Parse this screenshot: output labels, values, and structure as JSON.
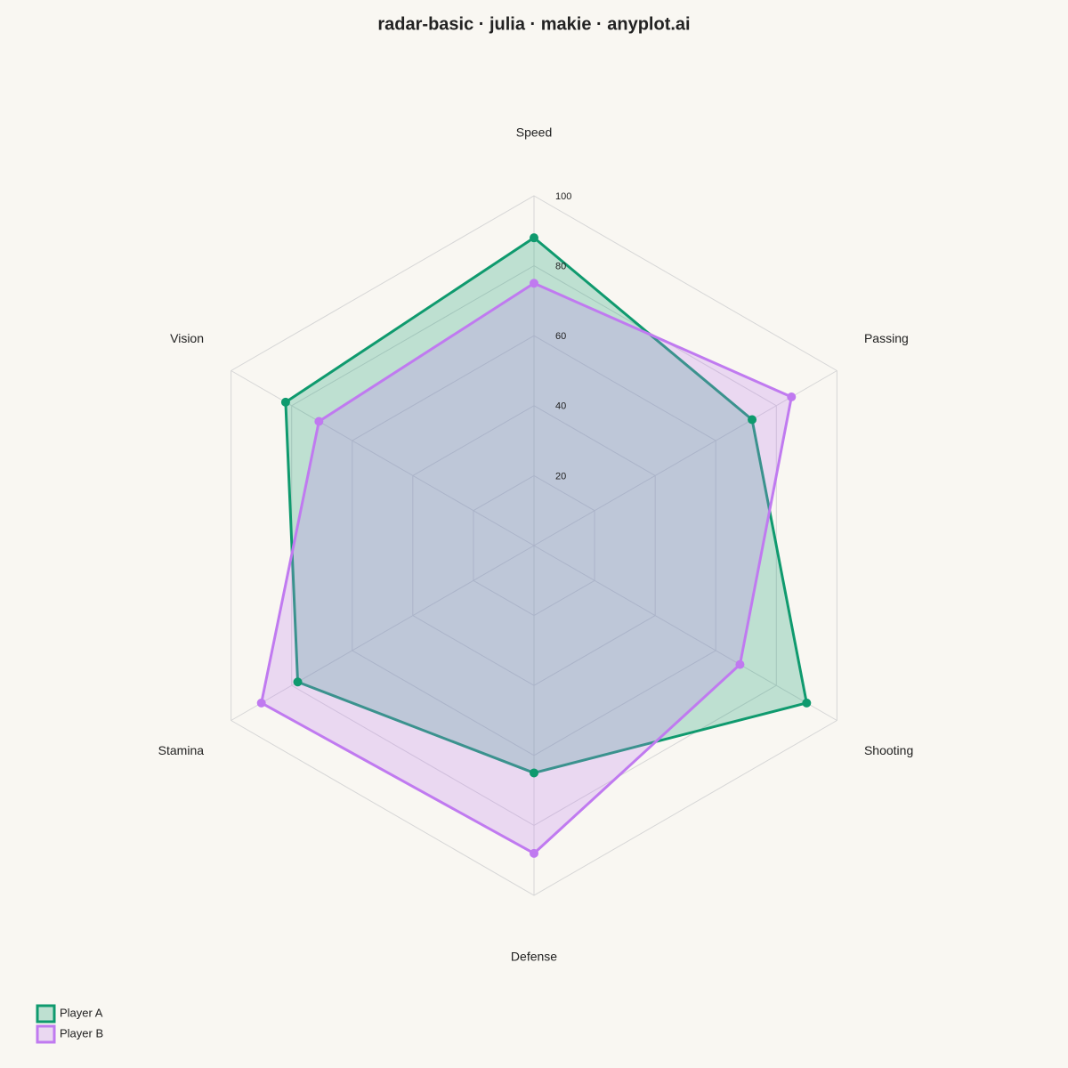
{
  "chart_data": {
    "type": "radar",
    "title": "radar-basic · julia · makie · anyplot.ai",
    "categories": [
      "Speed",
      "Passing",
      "Shooting",
      "Defense",
      "Stamina",
      "Vision"
    ],
    "rlim": [
      0,
      100
    ],
    "rticks": [
      20,
      40,
      60,
      80,
      100
    ],
    "grid": true,
    "legend": "bottom-left",
    "series": [
      {
        "name": "Player A",
        "color": "#0f9a6e",
        "values": [
          88,
          72,
          90,
          65,
          78,
          82
        ]
      },
      {
        "name": "Player B",
        "color": "#c07af0",
        "values": [
          75,
          85,
          68,
          88,
          90,
          71
        ]
      }
    ]
  }
}
